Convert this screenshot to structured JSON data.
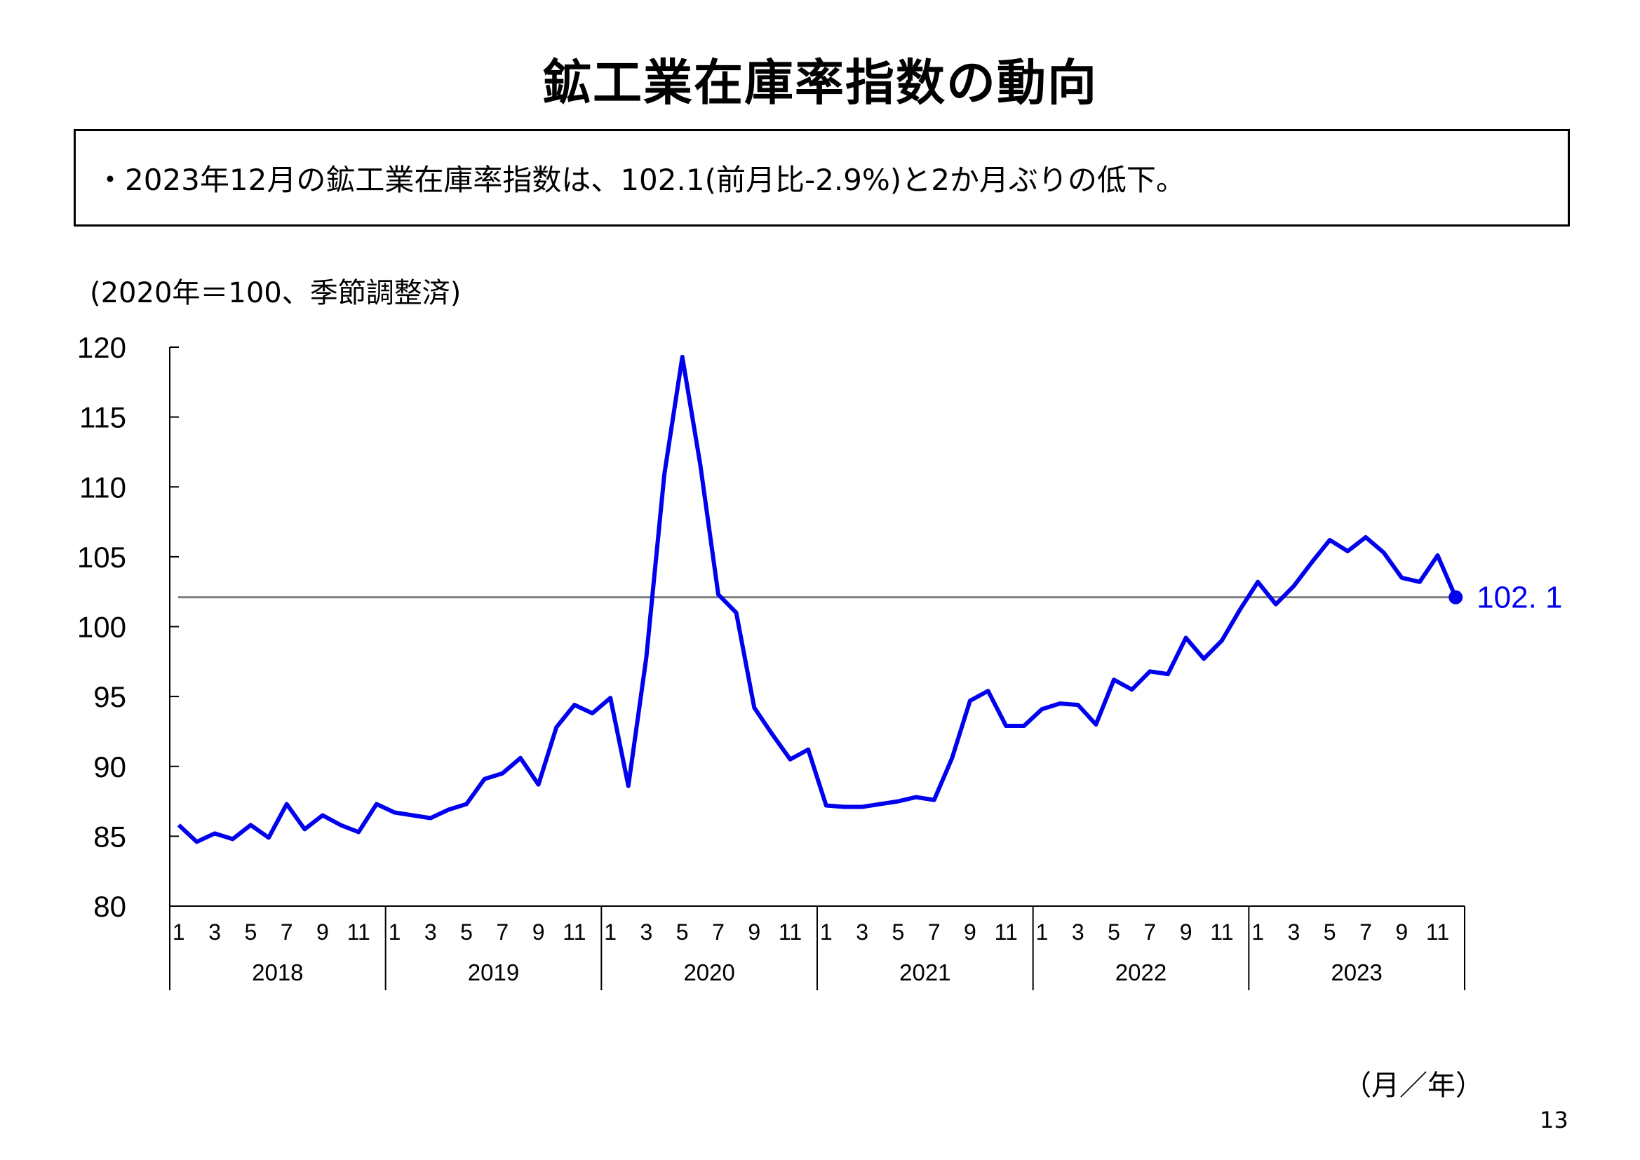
{
  "title": "鉱工業在庫率指数の動向",
  "summary": "・2023年12月の鉱工業在庫率指数は、102.1(前月比-2.9%)と2か月ぶりの低下。",
  "unit_note": "(2020年＝100、季節調整済)",
  "x_unit": "（月／年）",
  "page_number": "13",
  "colors": {
    "series": "#0000ee",
    "reference_line": "#808080",
    "axis": "#000000"
  },
  "chart_data": {
    "type": "line",
    "ylim": [
      80,
      120
    ],
    "yticks": [
      "80",
      "85",
      "90",
      "95",
      "100",
      "105",
      "110",
      "115",
      "120"
    ],
    "month_ticks": [
      "1",
      "3",
      "5",
      "7",
      "9",
      "11"
    ],
    "years": [
      "2018",
      "2019",
      "2020",
      "2021",
      "2022",
      "2023"
    ],
    "reference_value": 102.1,
    "end_label": "102. 1",
    "grid": false,
    "series": [
      {
        "values": [
          85.8,
          84.6,
          85.2,
          84.8,
          85.8,
          84.9,
          87.3,
          85.5,
          86.5,
          85.8,
          85.3,
          87.3,
          86.7,
          86.5,
          86.3,
          86.9,
          87.3,
          89.1,
          89.5,
          90.6,
          88.7,
          92.8,
          94.4,
          93.8,
          94.9,
          88.6,
          97.8,
          110.9,
          119.3,
          111.6,
          102.3,
          101.0,
          94.2,
          92.3,
          90.5,
          91.2,
          87.2,
          87.1,
          87.1,
          87.3,
          87.5,
          87.8,
          87.6,
          90.6,
          94.7,
          95.4,
          92.9,
          92.9,
          94.1,
          94.5,
          94.4,
          93.0,
          96.2,
          95.5,
          96.8,
          96.6,
          99.2,
          97.7,
          99.0,
          101.2,
          103.2,
          101.6,
          102.9,
          104.6,
          106.2,
          105.4,
          106.4,
          105.3,
          103.5,
          103.2,
          105.1,
          102.1
        ]
      }
    ]
  }
}
